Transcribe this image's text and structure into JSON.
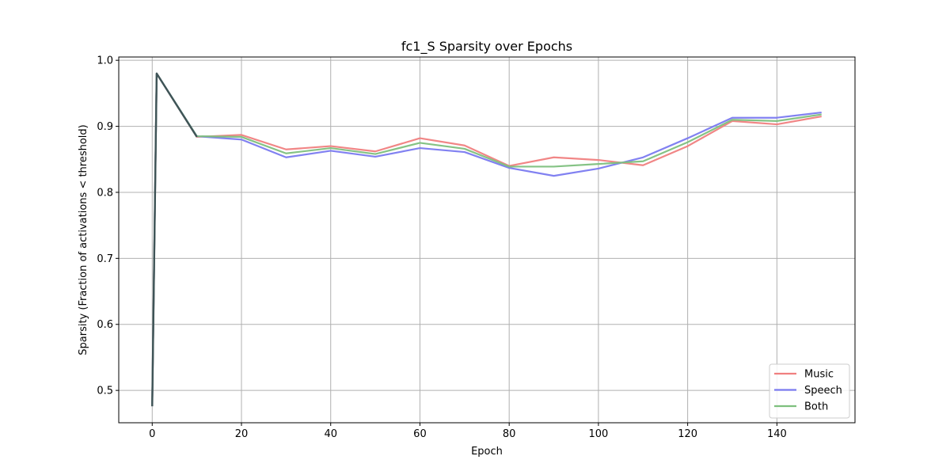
{
  "chart_data": {
    "type": "line",
    "title": "fc1_S Sparsity over Epochs",
    "xlabel": "Epoch",
    "ylabel": "Sparsity (Fraction of activations < threshold)",
    "xlim": [
      -7.5,
      157.5
    ],
    "ylim": [
      0.451,
      1.005
    ],
    "xticks": [
      0,
      20,
      40,
      60,
      80,
      100,
      120,
      140
    ],
    "yticks": [
      0.5,
      0.6,
      0.7,
      0.8,
      0.9,
      1.0
    ],
    "xtick_labels": [
      "0",
      "20",
      "40",
      "60",
      "80",
      "100",
      "120",
      "140"
    ],
    "ytick_labels": [
      "0.5",
      "0.6",
      "0.7",
      "0.8",
      "0.9",
      "1.0"
    ],
    "grid": true,
    "legend_position": "lower-right",
    "x": [
      0,
      1,
      10,
      20,
      30,
      40,
      50,
      60,
      70,
      80,
      90,
      100,
      110,
      120,
      130,
      140,
      150
    ],
    "series": [
      {
        "name": "Music",
        "color": "#f08080",
        "values": [
          0.476,
          0.98,
          0.884,
          0.887,
          0.865,
          0.87,
          0.862,
          0.882,
          0.871,
          0.84,
          0.853,
          0.849,
          0.841,
          0.87,
          0.908,
          0.903,
          0.915
        ]
      },
      {
        "name": "Speech",
        "color": "#7a7af0",
        "values": [
          0.476,
          0.98,
          0.885,
          0.88,
          0.853,
          0.863,
          0.854,
          0.867,
          0.861,
          0.837,
          0.825,
          0.836,
          0.853,
          0.882,
          0.913,
          0.913,
          0.921
        ]
      },
      {
        "name": "Both",
        "color": "#7ec07e",
        "values": [
          0.476,
          0.98,
          0.885,
          0.884,
          0.859,
          0.867,
          0.858,
          0.875,
          0.866,
          0.839,
          0.839,
          0.843,
          0.847,
          0.876,
          0.91,
          0.908,
          0.918
        ]
      }
    ]
  }
}
